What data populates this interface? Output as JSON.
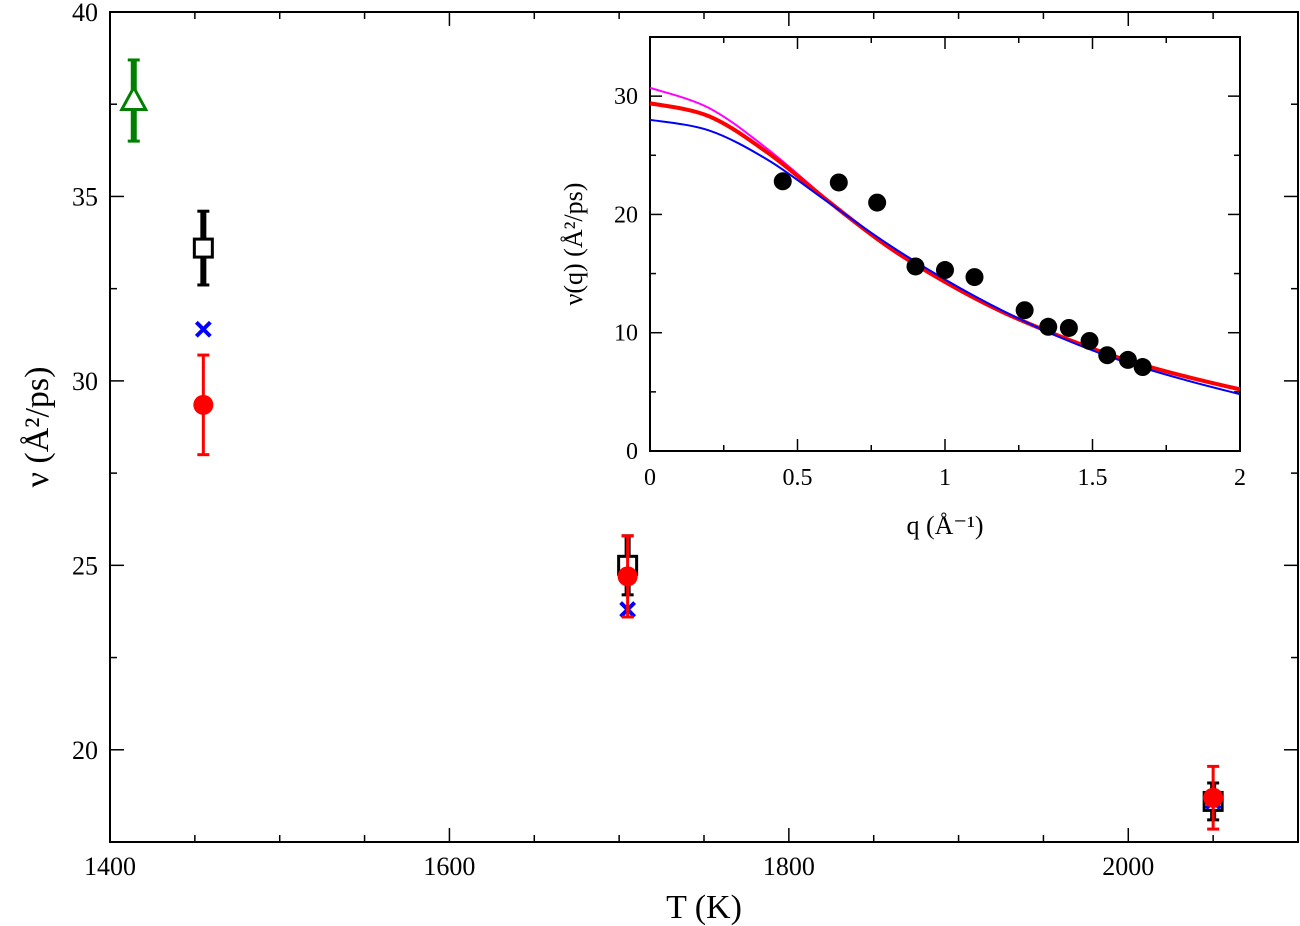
{
  "chart_data": [
    {
      "type": "scatter",
      "xlabel": "T  (K)",
      "ylabel": "ν  (Å²/ps)",
      "xlim": [
        1400,
        2100
      ],
      "ylim": [
        17.5,
        40
      ],
      "xticks": [
        1400,
        1600,
        1800,
        2000
      ],
      "yticks": [
        20,
        25,
        30,
        35,
        40
      ],
      "grid": false,
      "series": [
        {
          "marker": "triangle-open",
          "color": "#008000",
          "points": [
            {
              "x": 1414,
              "y": 37.6,
              "err": 1.1
            }
          ]
        },
        {
          "marker": "square-open",
          "color": "#000000",
          "points": [
            {
              "x": 1455,
              "y": 33.6,
              "err": 1.0
            },
            {
              "x": 1705,
              "y": 25.0,
              "err": 0.8
            },
            {
              "x": 2050,
              "y": 18.6,
              "err": 0.5
            }
          ]
        },
        {
          "marker": "x",
          "color": "#0000ff",
          "points": [
            {
              "x": 1455,
              "y": 31.4
            },
            {
              "x": 1705,
              "y": 23.8
            },
            {
              "x": 2050,
              "y": 18.6
            }
          ]
        },
        {
          "marker": "circle-filled",
          "color": "#ff0000",
          "points": [
            {
              "x": 1455,
              "y": 29.35,
              "err": 1.35
            },
            {
              "x": 1705,
              "y": 24.7,
              "err": 1.1
            },
            {
              "x": 2050,
              "y": 18.7,
              "err": 0.85
            }
          ]
        }
      ]
    },
    {
      "type": "line",
      "inset": true,
      "xlabel": "q  (Å⁻¹)",
      "ylabel": "ν(q)  (Å²/ps)",
      "xlim": [
        0,
        2
      ],
      "ylim": [
        0,
        35
      ],
      "xticks": [
        0,
        0.5,
        1,
        1.5,
        2
      ],
      "xtick_labels": [
        "0",
        "0.5",
        "1",
        "1.5",
        "2"
      ],
      "yticks": [
        0,
        10,
        20,
        30
      ],
      "grid": false,
      "points": {
        "color": "#000000",
        "x": [
          0.45,
          0.64,
          0.77,
          0.9,
          1.0,
          1.1,
          1.27,
          1.35,
          1.42,
          1.49,
          1.55,
          1.62,
          1.67
        ],
        "y": [
          22.8,
          22.7,
          21.0,
          15.6,
          15.3,
          14.7,
          11.9,
          10.5,
          10.4,
          9.3,
          8.1,
          7.7,
          7.1
        ]
      },
      "series": [
        {
          "color": "#ff00ff",
          "width": 2,
          "x": [
            0,
            0.2,
            0.4,
            0.6,
            0.8,
            1.0,
            1.2,
            1.4,
            1.6,
            1.8,
            2.0
          ],
          "y": [
            30.7,
            29.0,
            25.5,
            21.3,
            17.3,
            14.2,
            11.6,
            9.6,
            7.8,
            6.4,
            5.3
          ]
        },
        {
          "color": "#ff0000",
          "width": 4,
          "x": [
            0,
            0.2,
            0.4,
            0.6,
            0.8,
            1.0,
            1.2,
            1.4,
            1.6,
            1.8,
            2.0
          ],
          "y": [
            29.4,
            28.3,
            25.2,
            21.2,
            17.4,
            14.3,
            11.7,
            9.6,
            7.8,
            6.4,
            5.2
          ]
        },
        {
          "color": "#0000ff",
          "width": 2,
          "x": [
            0,
            0.2,
            0.4,
            0.6,
            0.8,
            1.0,
            1.2,
            1.4,
            1.6,
            1.8,
            2.0
          ],
          "y": [
            28.0,
            27.1,
            24.6,
            21.1,
            17.6,
            14.5,
            11.8,
            9.5,
            7.6,
            6.1,
            4.8
          ]
        }
      ]
    }
  ]
}
